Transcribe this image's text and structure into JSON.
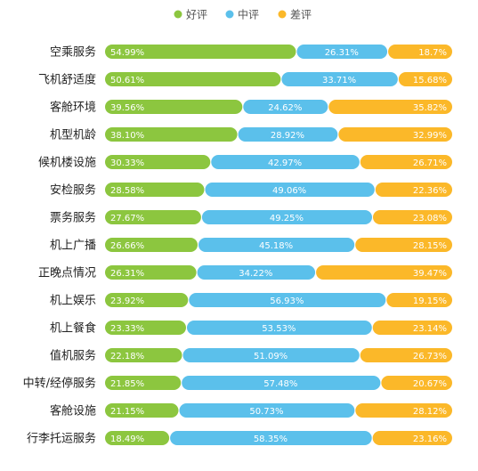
{
  "chart_data": {
    "type": "bar",
    "stacked": true,
    "orientation": "horizontal",
    "normalized_percent": true,
    "legend_position": "top-center",
    "grid": false,
    "categories": [
      "空乘服务",
      "飞机舒适度",
      "客舱环境",
      "机型机龄",
      "候机楼设施",
      "安检服务",
      "票务服务",
      "机上广播",
      "正晚点情况",
      "机上娱乐",
      "机上餐食",
      "值机服务",
      "中转/经停服务",
      "客舱设施",
      "行李托运服务"
    ],
    "series": [
      {
        "name": "好评",
        "color": "#8cc63f",
        "values": [
          54.99,
          50.61,
          39.56,
          38.1,
          30.33,
          28.58,
          27.67,
          26.66,
          26.31,
          23.92,
          23.33,
          22.18,
          21.85,
          21.15,
          18.49
        ],
        "labels": [
          "54.99%",
          "50.61%",
          "39.56%",
          "38.10%",
          "30.33%",
          "28.58%",
          "27.67%",
          "26.66%",
          "26.31%",
          "23.92%",
          "23.33%",
          "22.18%",
          "21.85%",
          "21.15%",
          "18.49%"
        ]
      },
      {
        "name": "中评",
        "color": "#5bc0eb",
        "values": [
          26.31,
          33.71,
          24.62,
          28.92,
          42.97,
          49.06,
          49.25,
          45.18,
          34.22,
          56.93,
          53.53,
          51.09,
          57.48,
          50.73,
          58.35
        ],
        "labels": [
          "26.31%",
          "33.71%",
          "24.62%",
          "28.92%",
          "42.97%",
          "49.06%",
          "49.25%",
          "45.18%",
          "34.22%",
          "56.93%",
          "53.53%",
          "51.09%",
          "57.48%",
          "50.73%",
          "58.35%"
        ]
      },
      {
        "name": "差评",
        "color": "#fbb829",
        "values": [
          18.7,
          15.68,
          35.82,
          32.99,
          26.71,
          22.36,
          23.08,
          28.15,
          39.47,
          19.15,
          23.14,
          26.73,
          20.67,
          28.12,
          23.16
        ],
        "labels": [
          "18.7%",
          "15.68%",
          "35.82%",
          "32.99%",
          "26.71%",
          "22.36%",
          "23.08%",
          "28.15%",
          "39.47%",
          "19.15%",
          "23.14%",
          "26.73%",
          "20.67%",
          "28.12%",
          "23.16%"
        ]
      }
    ]
  }
}
